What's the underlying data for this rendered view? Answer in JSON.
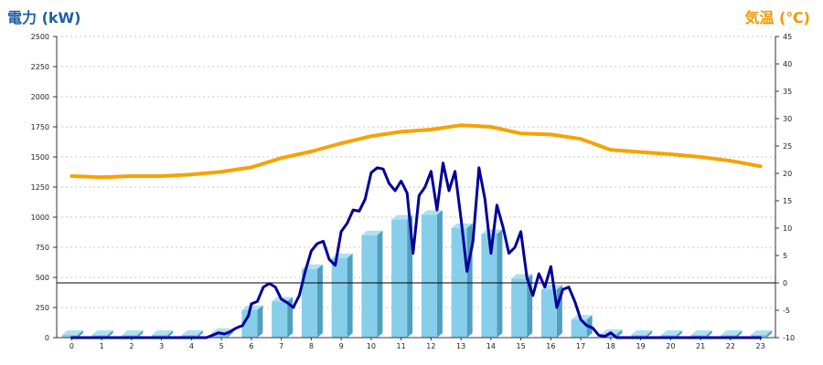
{
  "chart_data": {
    "type": "bar",
    "titles": {
      "left": "電力 (kW)",
      "right": "気温 (℃)"
    },
    "colors": {
      "left_title": "#1f5fa6",
      "right_title": "#f39800",
      "bar_front": "#87ceeb",
      "bar_side": "#4f9fbf",
      "bar_top": "#b0e0ef",
      "power_line": "#000099",
      "temp_line": "#f5a300",
      "grid": "#c8c8c8"
    },
    "x_ticks": [
      "0",
      "1",
      "2",
      "3",
      "4",
      "5",
      "6",
      "7",
      "8",
      "9",
      "10",
      "11",
      "12",
      "13",
      "14",
      "15",
      "16",
      "17",
      "18",
      "19",
      "20",
      "21",
      "22",
      "23"
    ],
    "y_left": {
      "min": 0,
      "max": 2500,
      "ticks": [
        "0",
        "250",
        "500",
        "750",
        "1000",
        "1250",
        "1500",
        "1750",
        "2000",
        "2250",
        "2500"
      ]
    },
    "y_right": {
      "min": -10,
      "max": 45,
      "ticks": [
        "-10",
        "-5",
        "0",
        "5",
        "10",
        "15",
        "20",
        "25",
        "30",
        "35",
        "40",
        "45"
      ]
    },
    "reference_line_right": 0,
    "bars": {
      "name": "",
      "axis": "left",
      "values": [
        0,
        0,
        0,
        0,
        0,
        40,
        230,
        300,
        570,
        660,
        850,
        980,
        1020,
        910,
        860,
        490,
        400,
        150,
        30,
        0,
        0,
        0,
        0,
        0
      ]
    },
    "power_line": {
      "axis": "left",
      "points": [
        [
          0,
          0
        ],
        [
          1,
          0
        ],
        [
          2,
          0
        ],
        [
          3,
          0
        ],
        [
          4,
          0
        ],
        [
          4.5,
          0
        ],
        [
          4.7,
          20
        ],
        [
          4.9,
          40
        ],
        [
          5.1,
          30
        ],
        [
          5.3,
          50
        ],
        [
          5.5,
          80
        ],
        [
          5.7,
          100
        ],
        [
          5.9,
          180
        ],
        [
          6.0,
          280
        ],
        [
          6.2,
          300
        ],
        [
          6.4,
          420
        ],
        [
          6.6,
          450
        ],
        [
          6.8,
          420
        ],
        [
          7.0,
          320
        ],
        [
          7.2,
          290
        ],
        [
          7.4,
          250
        ],
        [
          7.6,
          350
        ],
        [
          7.8,
          550
        ],
        [
          8.0,
          720
        ],
        [
          8.2,
          780
        ],
        [
          8.4,
          800
        ],
        [
          8.6,
          650
        ],
        [
          8.8,
          600
        ],
        [
          9.0,
          880
        ],
        [
          9.2,
          950
        ],
        [
          9.4,
          1060
        ],
        [
          9.6,
          1050
        ],
        [
          9.8,
          1150
        ],
        [
          10.0,
          1370
        ],
        [
          10.2,
          1410
        ],
        [
          10.4,
          1400
        ],
        [
          10.6,
          1280
        ],
        [
          10.8,
          1220
        ],
        [
          11.0,
          1300
        ],
        [
          11.2,
          1200
        ],
        [
          11.4,
          700
        ],
        [
          11.6,
          1180
        ],
        [
          11.8,
          1250
        ],
        [
          12.0,
          1380
        ],
        [
          12.2,
          1060
        ],
        [
          12.4,
          1450
        ],
        [
          12.6,
          1220
        ],
        [
          12.8,
          1380
        ],
        [
          13.0,
          990
        ],
        [
          13.2,
          550
        ],
        [
          13.4,
          800
        ],
        [
          13.6,
          1410
        ],
        [
          13.8,
          1150
        ],
        [
          14.0,
          700
        ],
        [
          14.2,
          1100
        ],
        [
          14.4,
          920
        ],
        [
          14.6,
          700
        ],
        [
          14.8,
          750
        ],
        [
          15.0,
          880
        ],
        [
          15.2,
          500
        ],
        [
          15.4,
          350
        ],
        [
          15.6,
          530
        ],
        [
          15.8,
          420
        ],
        [
          16.0,
          590
        ],
        [
          16.2,
          250
        ],
        [
          16.4,
          400
        ],
        [
          16.6,
          420
        ],
        [
          16.8,
          300
        ],
        [
          17.0,
          150
        ],
        [
          17.2,
          100
        ],
        [
          17.4,
          80
        ],
        [
          17.6,
          20
        ],
        [
          17.8,
          10
        ],
        [
          18.0,
          40
        ],
        [
          18.2,
          0
        ],
        [
          19,
          0
        ],
        [
          20,
          0
        ],
        [
          21,
          0
        ],
        [
          22,
          0
        ],
        [
          23,
          0
        ]
      ]
    },
    "temp_line": {
      "axis": "right",
      "points": [
        [
          0,
          19.5
        ],
        [
          1,
          19.3
        ],
        [
          2,
          19.5
        ],
        [
          3,
          19.5
        ],
        [
          4,
          19.8
        ],
        [
          5,
          20.3
        ],
        [
          6,
          21.1
        ],
        [
          7,
          22.8
        ],
        [
          8,
          24.0
        ],
        [
          9,
          25.5
        ],
        [
          10,
          26.8
        ],
        [
          11,
          27.6
        ],
        [
          12,
          28.0
        ],
        [
          13,
          28.8
        ],
        [
          14,
          28.5
        ],
        [
          15,
          27.3
        ],
        [
          16,
          27.1
        ],
        [
          17,
          26.3
        ],
        [
          18,
          24.3
        ],
        [
          19,
          23.9
        ],
        [
          20,
          23.5
        ],
        [
          21,
          23.0
        ],
        [
          22,
          22.3
        ],
        [
          23,
          21.3
        ]
      ]
    }
  }
}
